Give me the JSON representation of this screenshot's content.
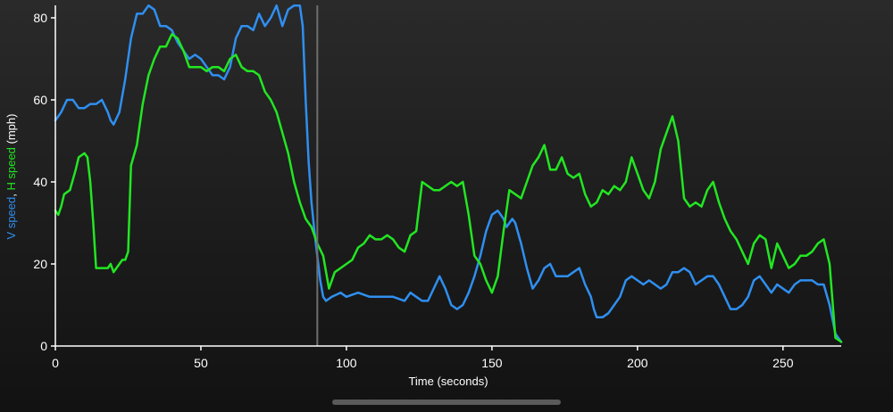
{
  "chart_data": {
    "type": "line",
    "xlabel": "Time (seconds)",
    "ylabel_parts": [
      {
        "text": "V speed",
        "color": "#2f8ff0"
      },
      {
        "text": ", ",
        "color": "#ffffff"
      },
      {
        "text": "H speed",
        "color": "#22e622"
      },
      {
        "text": " (mph)",
        "color": "#ffffff"
      }
    ],
    "xlim": [
      0,
      270
    ],
    "ylim": [
      0,
      80
    ],
    "xticks": [
      0,
      50,
      100,
      150,
      200,
      250
    ],
    "yticks": [
      0,
      20,
      40,
      60,
      80
    ],
    "marker_x": 90,
    "grid": false,
    "series": [
      {
        "name": "V speed",
        "color": "#2f8ff0",
        "points": [
          [
            0,
            55
          ],
          [
            2,
            57
          ],
          [
            4,
            60
          ],
          [
            6,
            60
          ],
          [
            8,
            58
          ],
          [
            10,
            58
          ],
          [
            12,
            59
          ],
          [
            14,
            59
          ],
          [
            16,
            60
          ],
          [
            18,
            57
          ],
          [
            19,
            55
          ],
          [
            20,
            54
          ],
          [
            22,
            57
          ],
          [
            24,
            65
          ],
          [
            26,
            75
          ],
          [
            28,
            81
          ],
          [
            30,
            81
          ],
          [
            32,
            83
          ],
          [
            34,
            82
          ],
          [
            36,
            78
          ],
          [
            38,
            78
          ],
          [
            40,
            77
          ],
          [
            42,
            74
          ],
          [
            44,
            72
          ],
          [
            46,
            70
          ],
          [
            48,
            71
          ],
          [
            50,
            70
          ],
          [
            52,
            68
          ],
          [
            54,
            66
          ],
          [
            56,
            66
          ],
          [
            58,
            65
          ],
          [
            60,
            68
          ],
          [
            62,
            75
          ],
          [
            64,
            78
          ],
          [
            66,
            78
          ],
          [
            68,
            77
          ],
          [
            70,
            81
          ],
          [
            72,
            78
          ],
          [
            74,
            80
          ],
          [
            76,
            83
          ],
          [
            78,
            78
          ],
          [
            80,
            82
          ],
          [
            82,
            83
          ],
          [
            84,
            83
          ],
          [
            85,
            78
          ],
          [
            86,
            60
          ],
          [
            87,
            45
          ],
          [
            88,
            35
          ],
          [
            89,
            28
          ],
          [
            90,
            22
          ],
          [
            91,
            16
          ],
          [
            92,
            12
          ],
          [
            93,
            11
          ],
          [
            95,
            12
          ],
          [
            98,
            13
          ],
          [
            100,
            12
          ],
          [
            104,
            13
          ],
          [
            108,
            12
          ],
          [
            112,
            12
          ],
          [
            116,
            12
          ],
          [
            120,
            11
          ],
          [
            122,
            13
          ],
          [
            124,
            12
          ],
          [
            126,
            11
          ],
          [
            128,
            11
          ],
          [
            130,
            14
          ],
          [
            132,
            17
          ],
          [
            134,
            14
          ],
          [
            136,
            10
          ],
          [
            138,
            9
          ],
          [
            140,
            10
          ],
          [
            142,
            13
          ],
          [
            144,
            17
          ],
          [
            146,
            22
          ],
          [
            148,
            28
          ],
          [
            150,
            32
          ],
          [
            152,
            33
          ],
          [
            154,
            31
          ],
          [
            155,
            29
          ],
          [
            157,
            31
          ],
          [
            158,
            30
          ],
          [
            160,
            25
          ],
          [
            162,
            19
          ],
          [
            164,
            14
          ],
          [
            166,
            16
          ],
          [
            168,
            19
          ],
          [
            170,
            20
          ],
          [
            172,
            17
          ],
          [
            174,
            17
          ],
          [
            176,
            17
          ],
          [
            178,
            18
          ],
          [
            180,
            19
          ],
          [
            182,
            15
          ],
          [
            184,
            12
          ],
          [
            185,
            9
          ],
          [
            186,
            7
          ],
          [
            188,
            7
          ],
          [
            190,
            8
          ],
          [
            192,
            10
          ],
          [
            194,
            12
          ],
          [
            196,
            16
          ],
          [
            198,
            17
          ],
          [
            200,
            16
          ],
          [
            202,
            15
          ],
          [
            204,
            16
          ],
          [
            206,
            15
          ],
          [
            208,
            14
          ],
          [
            210,
            15
          ],
          [
            212,
            18
          ],
          [
            214,
            18
          ],
          [
            216,
            19
          ],
          [
            218,
            18
          ],
          [
            220,
            15
          ],
          [
            222,
            16
          ],
          [
            224,
            17
          ],
          [
            226,
            17
          ],
          [
            228,
            15
          ],
          [
            230,
            12
          ],
          [
            232,
            9
          ],
          [
            234,
            9
          ],
          [
            236,
            10
          ],
          [
            238,
            12
          ],
          [
            240,
            16
          ],
          [
            242,
            17
          ],
          [
            244,
            15
          ],
          [
            246,
            13
          ],
          [
            248,
            15
          ],
          [
            250,
            14
          ],
          [
            252,
            13
          ],
          [
            254,
            15
          ],
          [
            256,
            16
          ],
          [
            258,
            16
          ],
          [
            260,
            16
          ],
          [
            262,
            15
          ],
          [
            264,
            15
          ],
          [
            266,
            10
          ],
          [
            268,
            3
          ],
          [
            270,
            1
          ]
        ]
      },
      {
        "name": "H speed",
        "color": "#22e622",
        "points": [
          [
            0,
            33
          ],
          [
            1,
            32
          ],
          [
            2,
            34
          ],
          [
            3,
            37
          ],
          [
            5,
            38
          ],
          [
            7,
            43
          ],
          [
            8,
            46
          ],
          [
            10,
            47
          ],
          [
            11,
            46
          ],
          [
            12,
            40
          ],
          [
            13,
            30
          ],
          [
            14,
            19
          ],
          [
            16,
            19
          ],
          [
            18,
            19
          ],
          [
            19,
            20
          ],
          [
            20,
            18
          ],
          [
            21,
            19
          ],
          [
            22,
            20
          ],
          [
            23,
            21
          ],
          [
            24,
            21
          ],
          [
            25,
            23
          ],
          [
            26,
            44
          ],
          [
            28,
            49
          ],
          [
            29,
            54
          ],
          [
            30,
            59
          ],
          [
            32,
            66
          ],
          [
            34,
            70
          ],
          [
            36,
            73
          ],
          [
            38,
            73
          ],
          [
            40,
            76
          ],
          [
            42,
            75
          ],
          [
            44,
            72
          ],
          [
            46,
            68
          ],
          [
            48,
            68
          ],
          [
            50,
            68
          ],
          [
            52,
            67
          ],
          [
            54,
            68
          ],
          [
            56,
            68
          ],
          [
            58,
            67
          ],
          [
            60,
            70
          ],
          [
            62,
            71
          ],
          [
            64,
            68
          ],
          [
            66,
            67
          ],
          [
            68,
            67
          ],
          [
            70,
            66
          ],
          [
            72,
            62
          ],
          [
            74,
            60
          ],
          [
            76,
            57
          ],
          [
            78,
            52
          ],
          [
            80,
            47
          ],
          [
            82,
            40
          ],
          [
            84,
            35
          ],
          [
            86,
            31
          ],
          [
            88,
            29
          ],
          [
            90,
            25
          ],
          [
            92,
            22
          ],
          [
            94,
            14
          ],
          [
            96,
            18
          ],
          [
            98,
            19
          ],
          [
            100,
            20
          ],
          [
            102,
            21
          ],
          [
            104,
            24
          ],
          [
            106,
            25
          ],
          [
            108,
            27
          ],
          [
            110,
            26
          ],
          [
            112,
            26
          ],
          [
            114,
            27
          ],
          [
            116,
            26
          ],
          [
            118,
            24
          ],
          [
            120,
            23
          ],
          [
            122,
            27
          ],
          [
            124,
            28
          ],
          [
            126,
            40
          ],
          [
            128,
            39
          ],
          [
            130,
            38
          ],
          [
            132,
            38
          ],
          [
            134,
            39
          ],
          [
            136,
            40
          ],
          [
            138,
            39
          ],
          [
            140,
            40
          ],
          [
            142,
            32
          ],
          [
            144,
            22
          ],
          [
            146,
            20
          ],
          [
            148,
            16
          ],
          [
            150,
            13
          ],
          [
            152,
            17
          ],
          [
            154,
            28
          ],
          [
            156,
            38
          ],
          [
            158,
            37
          ],
          [
            160,
            36
          ],
          [
            162,
            40
          ],
          [
            164,
            44
          ],
          [
            166,
            46
          ],
          [
            168,
            49
          ],
          [
            170,
            43
          ],
          [
            172,
            43
          ],
          [
            174,
            46
          ],
          [
            176,
            42
          ],
          [
            178,
            41
          ],
          [
            180,
            42
          ],
          [
            182,
            37
          ],
          [
            184,
            34
          ],
          [
            186,
            35
          ],
          [
            188,
            38
          ],
          [
            190,
            37
          ],
          [
            192,
            39
          ],
          [
            194,
            38
          ],
          [
            196,
            40
          ],
          [
            198,
            46
          ],
          [
            200,
            42
          ],
          [
            202,
            38
          ],
          [
            204,
            36
          ],
          [
            206,
            40
          ],
          [
            208,
            48
          ],
          [
            210,
            52
          ],
          [
            212,
            56
          ],
          [
            214,
            50
          ],
          [
            216,
            36
          ],
          [
            218,
            34
          ],
          [
            220,
            35
          ],
          [
            222,
            34
          ],
          [
            224,
            38
          ],
          [
            226,
            40
          ],
          [
            228,
            35
          ],
          [
            230,
            31
          ],
          [
            232,
            28
          ],
          [
            234,
            26
          ],
          [
            236,
            23
          ],
          [
            238,
            20
          ],
          [
            240,
            25
          ],
          [
            242,
            27
          ],
          [
            244,
            26
          ],
          [
            246,
            19
          ],
          [
            248,
            25
          ],
          [
            250,
            22
          ],
          [
            252,
            19
          ],
          [
            254,
            20
          ],
          [
            256,
            22
          ],
          [
            258,
            22
          ],
          [
            260,
            23
          ],
          [
            262,
            25
          ],
          [
            264,
            26
          ],
          [
            266,
            20
          ],
          [
            268,
            2
          ],
          [
            270,
            1
          ]
        ]
      }
    ]
  }
}
